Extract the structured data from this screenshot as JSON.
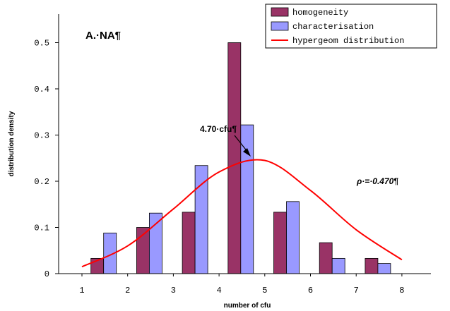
{
  "chart_data": {
    "type": "bar",
    "title": "",
    "panel_label": "A.·NA¶",
    "xlabel": "number of cfu",
    "ylabel": "distribution density",
    "categories": [
      "1",
      "2",
      "3",
      "4",
      "5",
      "6",
      "7",
      "8"
    ],
    "ylim": [
      0,
      0.6
    ],
    "yticks": [
      "0",
      "0.1",
      "0.2",
      "0.3",
      "0.4",
      "0.5"
    ],
    "grid": false,
    "legend_position": "top-right",
    "series": [
      {
        "name": "homogeneity",
        "type": "bar",
        "color": "#993366",
        "values": [
          0,
          0.033,
          0.1,
          0.133,
          0.5,
          0.133,
          0.067,
          0.033
        ]
      },
      {
        "name": "characterisation",
        "type": "bar",
        "color": "#9999ff",
        "values": [
          0,
          0.088,
          0.131,
          0.234,
          0.322,
          0.156,
          0.033,
          0.022
        ]
      },
      {
        "name": "hypergeom distribution",
        "type": "line",
        "color": "#ff0000",
        "x": [
          1,
          2,
          3,
          4,
          5,
          6,
          7,
          8
        ],
        "values": [
          0.015,
          0.06,
          0.14,
          0.22,
          0.245,
          0.18,
          0.095,
          0.03
        ]
      }
    ],
    "annotations": [
      {
        "text": "4.70·cfu¶",
        "arrow_to": {
          "x": 4.8,
          "y": 0.25
        }
      },
      {
        "text": "ρ·=·0.470¶"
      }
    ]
  }
}
